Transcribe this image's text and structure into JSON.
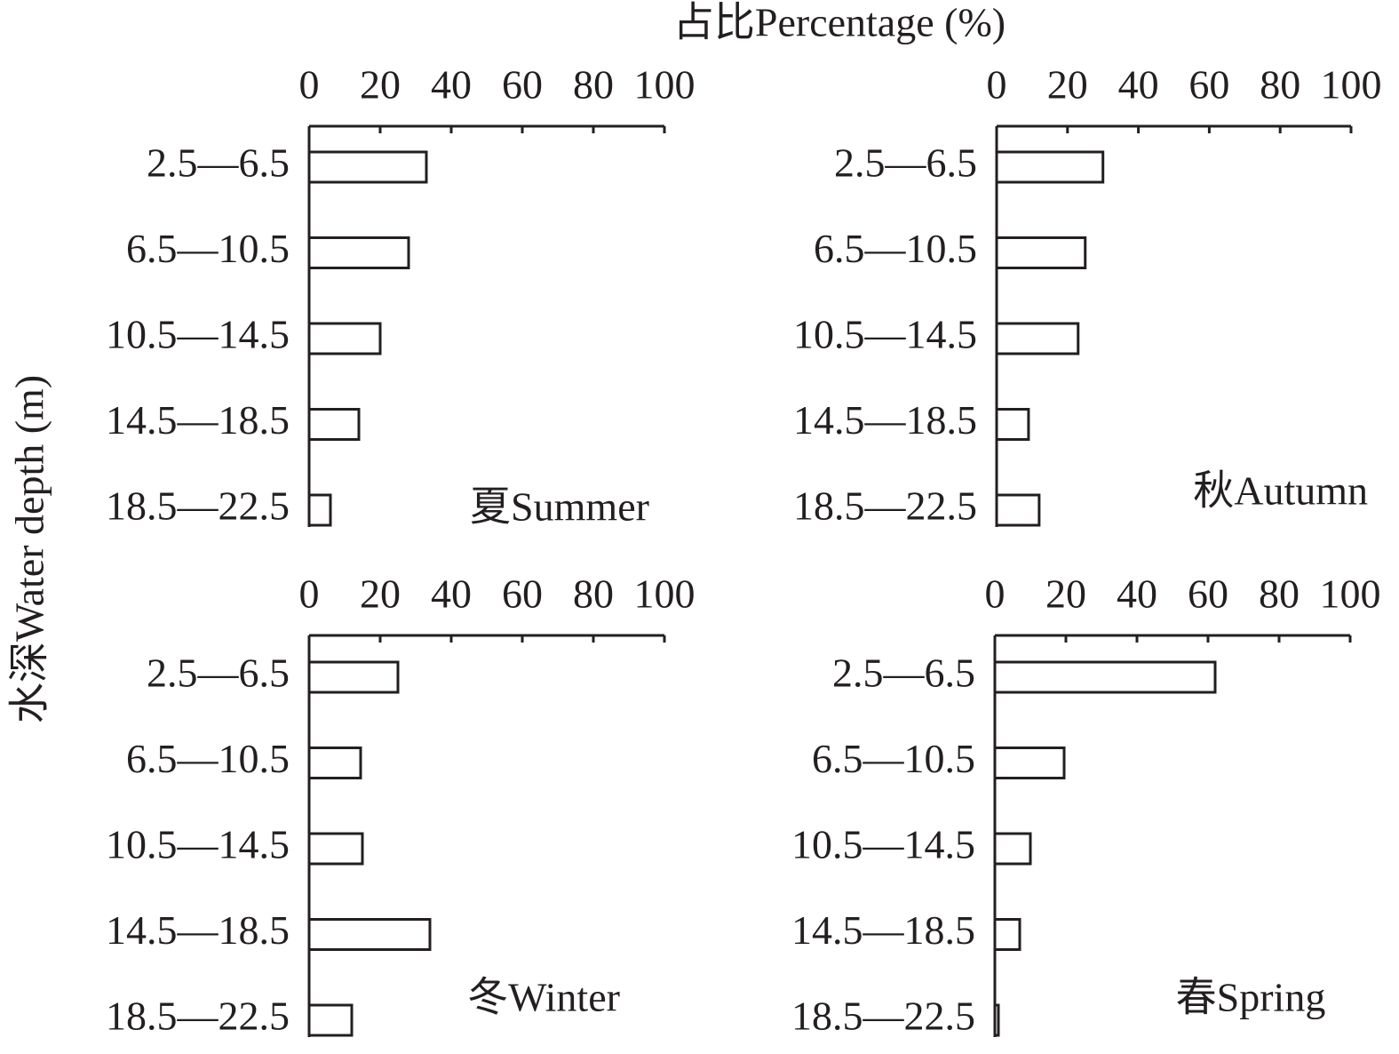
{
  "xlabel": "占比Percentage (%)",
  "ylabel": "水深Water depth (m)",
  "chart_data": [
    {
      "type": "bar",
      "orientation": "horizontal",
      "label": "夏Summer",
      "color": "#ffffff",
      "categories": [
        "2.5—6.5",
        "6.5—10.5",
        "10.5—14.5",
        "14.5—18.5",
        "18.5—22.5"
      ],
      "values": [
        33,
        28,
        20,
        14,
        6
      ],
      "xlim": [
        0,
        100
      ],
      "xticks": [
        0,
        20,
        40,
        60,
        80,
        100
      ]
    },
    {
      "type": "bar",
      "orientation": "horizontal",
      "label": "秋Autumn",
      "color": "#ffffff",
      "categories": [
        "2.5—6.5",
        "6.5—10.5",
        "10.5—14.5",
        "14.5—18.5",
        "18.5—22.5"
      ],
      "values": [
        30,
        25,
        23,
        9,
        12
      ],
      "xlim": [
        0,
        100
      ],
      "xticks": [
        0,
        20,
        40,
        60,
        80,
        100
      ]
    },
    {
      "type": "bar",
      "orientation": "horizontal",
      "label": "冬Winter",
      "color": "#ffffff",
      "categories": [
        "2.5—6.5",
        "6.5—10.5",
        "10.5—14.5",
        "14.5—18.5",
        "18.5—22.5"
      ],
      "values": [
        25,
        14.5,
        15,
        34,
        12
      ],
      "xlim": [
        0,
        100
      ],
      "xticks": [
        0,
        20,
        40,
        60,
        80,
        100
      ]
    },
    {
      "type": "bar",
      "orientation": "horizontal",
      "label": "春Spring",
      "color": "#ffffff",
      "categories": [
        "2.5—6.5",
        "6.5—10.5",
        "10.5—14.5",
        "14.5—18.5",
        "18.5—22.5"
      ],
      "values": [
        62,
        19.5,
        10,
        7,
        1
      ],
      "xlim": [
        0,
        100
      ],
      "xticks": [
        0,
        20,
        40,
        60,
        80,
        100
      ]
    }
  ]
}
